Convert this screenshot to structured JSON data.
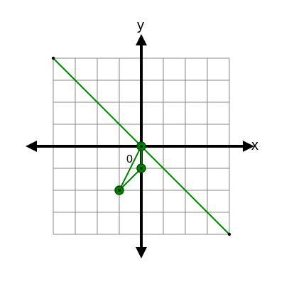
{
  "figure": {
    "x_axis_label": "x",
    "y_axis_label": "y",
    "origin_label": "0"
  },
  "chart_data": {
    "type": "line",
    "grid": true,
    "xlim": [
      -4,
      4
    ],
    "ylim": [
      -4,
      4
    ],
    "colors": {
      "grid": "#888888",
      "axes": "#000000",
      "line": "#008000",
      "marker_fill": "#008000",
      "marker_stroke": "#004d00"
    },
    "line": {
      "from": [
        -4,
        4
      ],
      "to": [
        4,
        -4
      ]
    },
    "path_points": [
      [
        0,
        0
      ],
      [
        0,
        -1
      ],
      [
        -1,
        -2
      ]
    ]
  }
}
